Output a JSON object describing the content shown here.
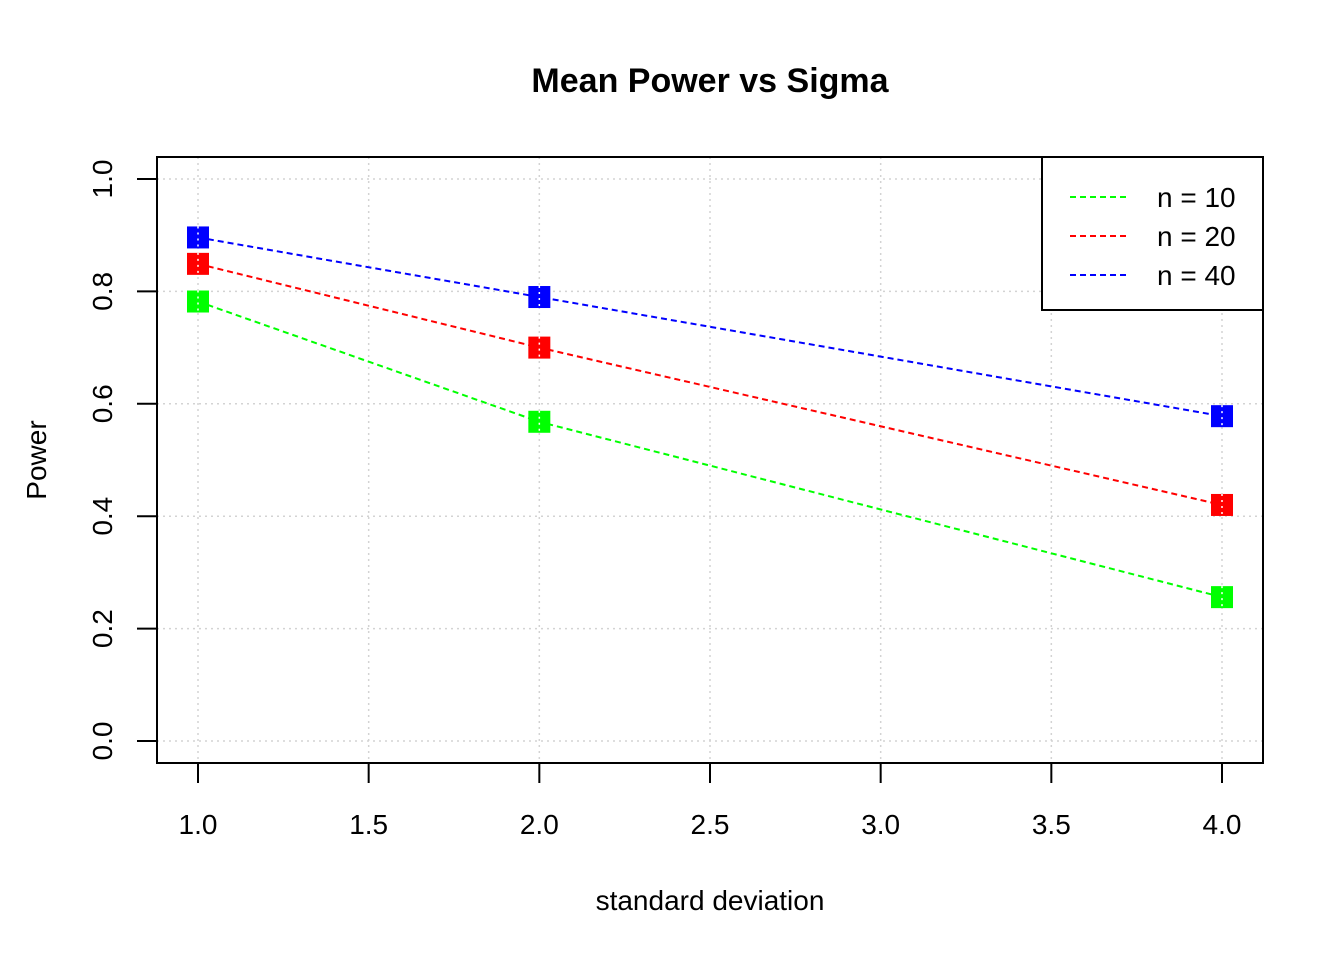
{
  "chart_data": {
    "type": "line",
    "title": "Mean Power vs Sigma",
    "xlabel": "standard deviation",
    "ylabel": "Power",
    "xlim": [
      1.0,
      4.0
    ],
    "ylim": [
      0.0,
      1.0
    ],
    "x_ticks": [
      "1.0",
      "1.5",
      "2.0",
      "2.5",
      "3.0",
      "3.5",
      "4.0"
    ],
    "y_ticks": [
      "0.0",
      "0.2",
      "0.4",
      "0.6",
      "0.8",
      "1.0"
    ],
    "grid": true,
    "legend_position": "top-right",
    "x": [
      1,
      2,
      4
    ],
    "series": [
      {
        "name": "n = 10",
        "color": "#00ff00",
        "values": [
          0.782,
          0.568,
          0.256
        ]
      },
      {
        "name": "n = 20",
        "color": "#ff0000",
        "values": [
          0.849,
          0.7,
          0.42
        ]
      },
      {
        "name": "n = 40",
        "color": "#0000ff",
        "values": [
          0.896,
          0.79,
          0.578
        ]
      }
    ],
    "marker": "filled-square",
    "line_style": "dashed"
  }
}
